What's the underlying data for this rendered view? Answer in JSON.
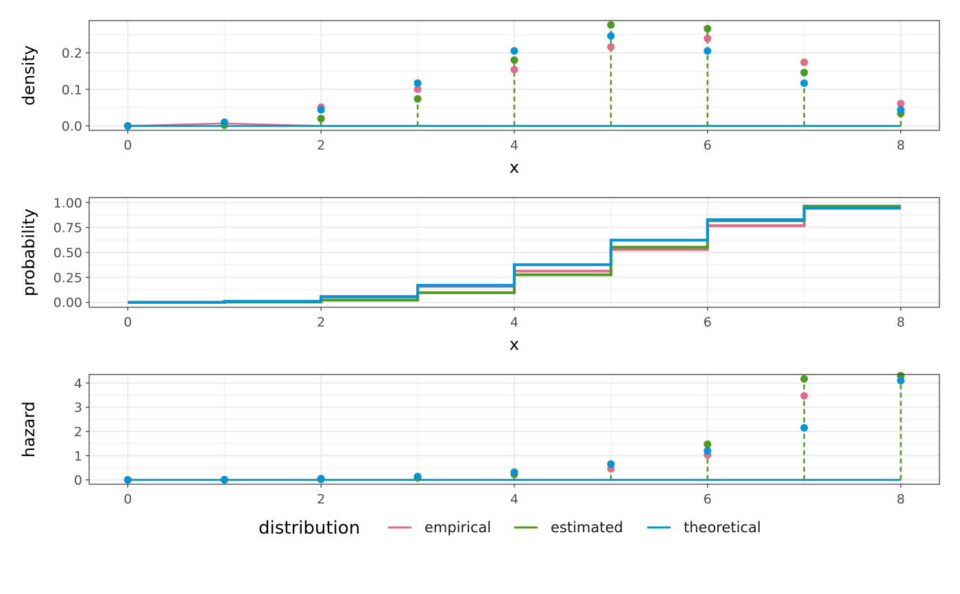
{
  "chart_data": [
    {
      "type": "scatter",
      "panel": "density",
      "xlabel": "x",
      "ylabel": "density",
      "xlim": [
        -0.4,
        8.4
      ],
      "ylim": [
        -0.012,
        0.288
      ],
      "xticks": [
        0,
        2,
        4,
        6,
        8
      ],
      "yticks": [
        0.0,
        0.1,
        0.2
      ],
      "ytick_labels": [
        "0.0",
        "0.1",
        "0.2"
      ],
      "x": [
        0,
        1,
        2,
        3,
        4,
        5,
        6,
        7,
        8
      ],
      "series": [
        {
          "name": "empirical",
          "values": [
            0.0,
            0.008,
            0.051,
            0.1,
            0.154,
            0.216,
            0.239,
            0.174,
            0.061
          ]
        },
        {
          "name": "estimated",
          "values": [
            0.0,
            0.002,
            0.02,
            0.074,
            0.18,
            0.276,
            0.266,
            0.146,
            0.034
          ]
        },
        {
          "name": "theoretical",
          "values": [
            0.0,
            0.01,
            0.044,
            0.117,
            0.205,
            0.246,
            0.205,
            0.117,
            0.044
          ]
        }
      ],
      "dashed_stems": true,
      "grid": true
    },
    {
      "type": "line",
      "panel": "probability",
      "step": true,
      "xlabel": "x",
      "ylabel": "probability",
      "xlim": [
        -0.4,
        8.4
      ],
      "ylim": [
        -0.05,
        1.05
      ],
      "xticks": [
        0,
        2,
        4,
        6,
        8
      ],
      "yticks": [
        0.0,
        0.25,
        0.5,
        0.75,
        1.0
      ],
      "ytick_labels": [
        "0.00",
        "0.25",
        "0.50",
        "0.75",
        "1.00"
      ],
      "x": [
        0,
        1,
        2,
        3,
        4,
        5,
        6,
        7,
        8
      ],
      "series": [
        {
          "name": "empirical",
          "values": [
            0.0,
            0.008,
            0.059,
            0.159,
            0.313,
            0.529,
            0.768,
            0.942,
            1.0
          ]
        },
        {
          "name": "estimated",
          "values": [
            0.0,
            0.002,
            0.022,
            0.096,
            0.276,
            0.552,
            0.818,
            0.964,
            1.0
          ]
        },
        {
          "name": "theoretical",
          "values": [
            0.0,
            0.01,
            0.054,
            0.171,
            0.377,
            0.623,
            0.828,
            0.945,
            0.99
          ]
        }
      ],
      "grid": true
    },
    {
      "type": "scatter",
      "panel": "hazard",
      "ylabel": "hazard",
      "xlim": [
        -0.4,
        8.4
      ],
      "ylim": [
        -0.18,
        4.35
      ],
      "xticks": [
        0,
        2,
        4,
        6,
        8
      ],
      "yticks": [
        0,
        1,
        2,
        3,
        4
      ],
      "ytick_labels": [
        "0",
        "1",
        "2",
        "3",
        "4"
      ],
      "x": [
        0,
        1,
        2,
        3,
        4,
        5,
        6,
        7,
        8
      ],
      "series": [
        {
          "name": "empirical",
          "values": [
            0.0,
            0.008,
            0.054,
            0.119,
            0.225,
            0.459,
            1.03,
            3.47,
            4.3
          ]
        },
        {
          "name": "estimated",
          "values": [
            0.0,
            0.002,
            0.02,
            0.082,
            0.24,
            0.65,
            1.47,
            4.17,
            4.3
          ]
        },
        {
          "name": "theoretical",
          "values": [
            0.0,
            0.01,
            0.046,
            0.138,
            0.32,
            0.65,
            1.2,
            2.15,
            4.1
          ]
        }
      ],
      "dashed_stems": true,
      "grid": true
    }
  ],
  "legend": {
    "title": "distribution",
    "position": "bottom",
    "entries": [
      {
        "name": "empirical",
        "color": "#e06c8a"
      },
      {
        "name": "estimated",
        "color": "#4c9a1e"
      },
      {
        "name": "theoretical",
        "color": "#0094d9"
      }
    ]
  },
  "colors": {
    "empirical": "#e06c8a",
    "estimated": "#4c9a1e",
    "theoretical": "#0094d9",
    "stem": "#4c9a1e",
    "grid": "#ebebeb",
    "panel_border": "#333333"
  }
}
